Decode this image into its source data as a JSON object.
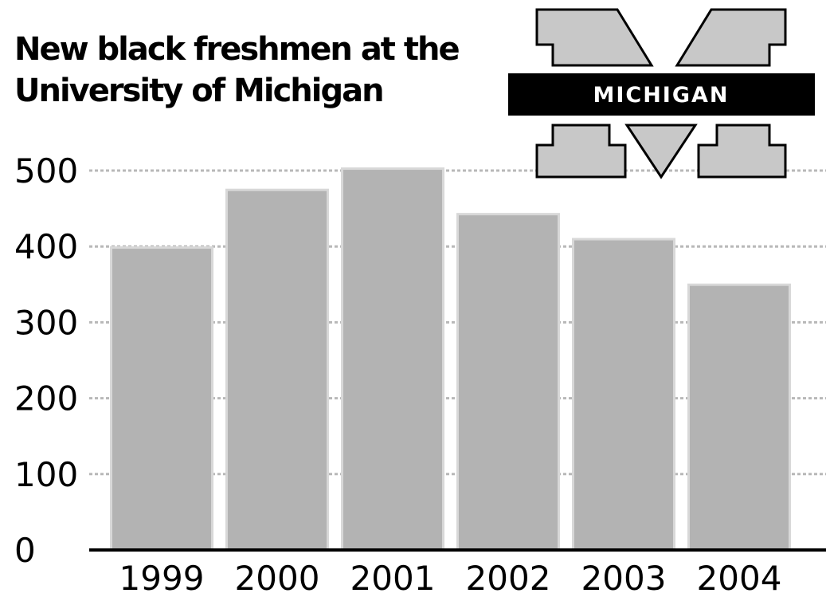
{
  "logo": {
    "text": "MICHIGAN"
  },
  "colors": {
    "bar": "#b3b3b3",
    "bar_edge": "#d8d8d8",
    "grid": "#b8b8b8",
    "axis": "#000000",
    "logo_fill": "#c8c8c8",
    "logo_band": "#000000"
  },
  "chart_data": {
    "type": "bar",
    "title": "New black freshmen at the University of Michigan",
    "title_lines": [
      "New black freshmen at the",
      "University of Michigan"
    ],
    "categories": [
      "1999",
      "2000",
      "2001",
      "2002",
      "2003",
      "2004"
    ],
    "values": [
      397,
      473,
      501,
      441,
      408,
      348
    ],
    "ylim": [
      0,
      500
    ],
    "yticks": [
      0,
      100,
      200,
      300,
      400,
      500
    ],
    "xlabel": "",
    "ylabel": "",
    "grid": true,
    "legend": "none"
  }
}
